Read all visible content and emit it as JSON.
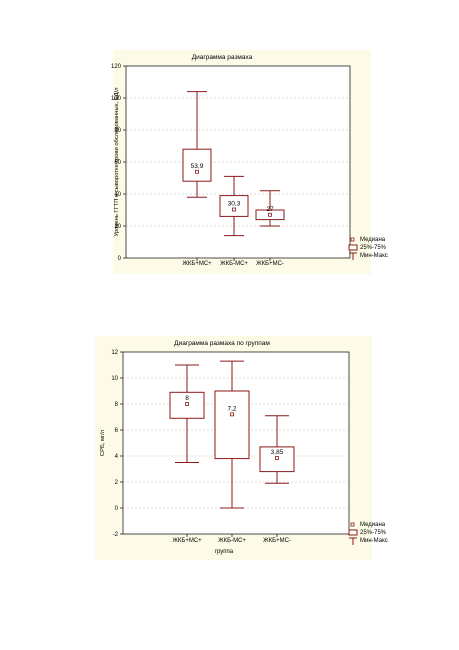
{
  "colors": {
    "background": "#fdfbe7",
    "mark": "#8b1a1a"
  },
  "chart_data": [
    {
      "type": "boxplot",
      "title": "Диаграмма размаха",
      "xlabel": "",
      "ylabel": "Уровень ГГТП в сыворотке крови обследованных, ЕД/л",
      "ylim": [
        0,
        120
      ],
      "yticks": [
        0,
        20,
        40,
        60,
        80,
        100,
        120
      ],
      "grid": true,
      "legend_position": "bottom-right",
      "legend": [
        "Медиана",
        "25%-75%",
        "Мин-Макс"
      ],
      "categories": [
        "ЖКБ+МС+",
        "ЖКБ-МС+",
        "ЖКБ+МС-"
      ],
      "min": [
        38,
        14,
        20
      ],
      "q1": [
        48,
        26,
        24
      ],
      "median": [
        53.9,
        30.3,
        27
      ],
      "q3": [
        68,
        39,
        30
      ],
      "max": [
        104,
        51,
        42
      ],
      "median_labels": [
        "53,9",
        "30,3",
        "27"
      ]
    },
    {
      "type": "boxplot",
      "title": "Диаграмма размаха по группам",
      "xlabel": "группа",
      "ylabel": "СРБ, мг/л",
      "ylim": [
        -2,
        12
      ],
      "yticks": [
        -2,
        0,
        2,
        4,
        6,
        8,
        10,
        12
      ],
      "grid": true,
      "legend_position": "bottom-right",
      "legend": [
        "Медиана",
        "25%-75%",
        "Мин-Макс"
      ],
      "categories": [
        "ЖКБ+МС+",
        "ЖКБ-МС+",
        "ЖКБ+МС-"
      ],
      "min": [
        3.5,
        0,
        1.9
      ],
      "q1": [
        6.9,
        3.8,
        2.8
      ],
      "median": [
        8,
        7.2,
        3.85
      ],
      "q3": [
        8.9,
        9,
        4.7
      ],
      "max": [
        11,
        11.3,
        7.1
      ],
      "median_labels": [
        "8",
        "7,2",
        "3,85"
      ]
    }
  ]
}
